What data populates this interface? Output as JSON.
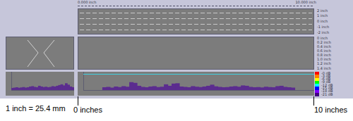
{
  "header": {
    "left": "0.000 inch",
    "right": "10.000 inch"
  },
  "top_scale_labels": [
    "2 inch",
    "1 inch",
    "0 inch",
    "-1 inch",
    "-2 inch"
  ],
  "middle_scale_labels": [
    "0 inch",
    "0.2 inch",
    "0.4 inch",
    "0.6 inch",
    "0.8 inch",
    "1.0 inch",
    "1.2 inch",
    "1.4 inch"
  ],
  "color_scale": {
    "labels": [
      "-0 dB",
      "-3 dB",
      "-6 dB",
      "-9 dB",
      "-12 dB",
      "-15 dB",
      "-18 dB",
      "-21 dB"
    ],
    "colors": [
      "#ff0000",
      "#ff8000",
      "#ffff00",
      "#00ff00",
      "#00ffff",
      "#0000ff",
      "#8000ff",
      "#400080"
    ]
  },
  "chart_data": [
    {
      "type": "bar",
      "categories": [
        null,
        null,
        null,
        null,
        null,
        null,
        null,
        null,
        null,
        null,
        null,
        null,
        null,
        null,
        null,
        null,
        null,
        null,
        null,
        null,
        null,
        null,
        null,
        null,
        null,
        null,
        null,
        null
      ],
      "values": [
        10,
        12,
        14,
        11,
        13,
        15,
        12,
        14,
        18,
        20,
        16,
        14,
        22,
        18,
        15,
        17,
        14,
        16,
        20,
        18,
        22,
        26,
        30,
        24,
        36,
        28,
        18,
        14
      ],
      "color": "#5b2c8f",
      "ylim": [
        0,
        100
      ],
      "tick_labels": false
    },
    {
      "type": "bar",
      "x": [
        0.1,
        0.3,
        0.5,
        0.7,
        0.9,
        1.1,
        1.3,
        1.5,
        1.7,
        1.9,
        2.1,
        2.3,
        2.5,
        2.7,
        2.9,
        3.1,
        3.3,
        3.5,
        3.7,
        3.9,
        4.1,
        4.3,
        4.5,
        4.7,
        4.9,
        5.1,
        5.3,
        5.5,
        5.7,
        5.9,
        6.1,
        6.3,
        6.5,
        6.7,
        6.9,
        7.1,
        7.3,
        7.5,
        7.7,
        7.9,
        8.1,
        8.3,
        8.5,
        8.7,
        8.9,
        9.1,
        9.3,
        9.5,
        9.7,
        9.9
      ],
      "values": [
        14,
        16,
        12,
        18,
        15,
        20,
        17,
        42,
        38,
        22,
        16,
        14,
        18,
        20,
        15,
        17,
        30,
        22,
        34,
        36,
        18,
        16,
        14,
        20,
        17,
        15,
        18,
        22,
        28,
        19,
        16,
        14,
        15,
        18,
        20,
        17,
        24,
        22,
        16,
        14,
        15,
        13,
        17,
        15,
        14,
        20,
        22,
        16,
        14,
        12
      ],
      "color": "#5b2c8f",
      "xlim": [
        0,
        10
      ],
      "ylim": [
        0,
        100
      ],
      "threshold": 88,
      "tick_labels": false
    }
  ],
  "annotations": {
    "scale_note": "1 inch = 25.4 mm",
    "start": "0 inches",
    "end": "10 inches"
  }
}
